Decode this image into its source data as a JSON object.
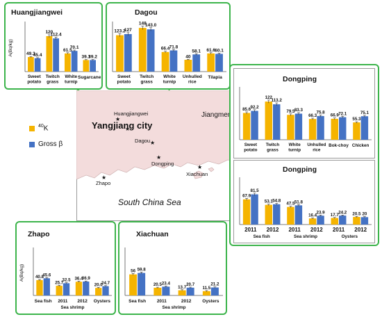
{
  "colors": {
    "k40": "#f5b400",
    "grossb": "#4472c4",
    "panel_border": "#3cb44b",
    "sea": "#ffffff",
    "land": "#f3dcdc"
  },
  "legend": {
    "k40": "40K",
    "k40_mass": "40",
    "k40_sym": "K",
    "grossb": "Gross β"
  },
  "map": {
    "labels": {
      "huangjiangwei": "Huangjiangwei",
      "yangjiang": "Yangjiang city",
      "jiangmen": "Jiangmen city",
      "dagou": "Dagou",
      "dongping": "Dongping",
      "xiachuan": "Xiachuan",
      "zhapo": "Zhapo",
      "south_china_sea": "South    China    Sea"
    }
  },
  "chart_data": [
    {
      "id": "huangjiangwei",
      "type": "bar",
      "title": "Huangjiangwei",
      "ylabel": "A(Bq/kg)",
      "categories": [
        "Sweet potato",
        "Twitch grass",
        "White turnip",
        "Sugarcane"
      ],
      "ylim": [
        0,
        160
      ],
      "series": [
        {
          "name": "40K",
          "values": [
            49.3,
            120,
            61.5,
            39.1
          ],
          "labels": [
            "49.3",
            "120",
            "61.5",
            "39.1"
          ]
        },
        {
          "name": "Gross β",
          "values": [
            45.4,
            112.4,
            70.1,
            39.2
          ],
          "labels": [
            "45.4",
            "112.4",
            "70.1",
            "39.2"
          ]
        }
      ]
    },
    {
      "id": "dagou",
      "type": "bar",
      "title": "Dagou",
      "ylabel": "",
      "categories": [
        "Sweet potato",
        "Twitch grass",
        "White turnip",
        "Unhulled rice",
        "Tilapia"
      ],
      "ylim": [
        0,
        160
      ],
      "series": [
        {
          "name": "40K",
          "values": [
            123.2,
            148,
            66.4,
            40,
            61.6
          ],
          "labels": [
            "123.2",
            "148",
            "66.4",
            "40",
            "61.6"
          ]
        },
        {
          "name": "Gross β",
          "values": [
            127,
            143.0,
            71.8,
            58.1,
            60.1
          ],
          "labels": [
            "127",
            "143.0",
            "71.8",
            "58.1",
            "60.1"
          ]
        }
      ]
    },
    {
      "id": "dongping-food",
      "type": "bar",
      "title": "Dongping",
      "ylabel": "",
      "categories": [
        "Sweet potato",
        "Twitch grass",
        "White turnip",
        "Unhulled rice",
        "Bok-choy",
        "Chicken"
      ],
      "ylim": [
        0,
        160
      ],
      "series": [
        {
          "name": "40K",
          "values": [
            85.6,
            122,
            79.5,
            66.3,
            66.9,
            55.3
          ],
          "labels": [
            "85.6",
            "122",
            "79.5",
            "66.3",
            "66.9",
            "55.3"
          ]
        },
        {
          "name": "Gross β",
          "values": [
            92.2,
            113.2,
            83.3,
            75.8,
            72.1,
            75.1
          ],
          "labels": [
            "92.2",
            "113.2",
            "83.3",
            "75.8",
            "72.1",
            "75.1"
          ]
        }
      ]
    },
    {
      "id": "dongping-sea",
      "type": "bar",
      "title": "Dongping",
      "ylabel": "",
      "categories": [
        "2011",
        "2012",
        "2011",
        "2012",
        "2011",
        "2012"
      ],
      "groups": [
        {
          "name": "Sea fish",
          "span": [
            0,
            1
          ]
        },
        {
          "name": "Sea shrimp",
          "span": [
            2,
            3
          ]
        },
        {
          "name": "Oysters",
          "span": [
            4,
            5
          ]
        }
      ],
      "ylim": [
        0,
        120
      ],
      "series": [
        {
          "name": "40K",
          "values": [
            67.9,
            53.1,
            47.5,
            16.4,
            17.7,
            20.5
          ],
          "labels": [
            "67.9",
            "53.1",
            "47.5",
            "16.4",
            "17.7",
            "20.5"
          ]
        },
        {
          "name": "Gross β",
          "values": [
            81.5,
            54.8,
            51.8,
            23.9,
            24.2,
            20
          ],
          "labels": [
            "81.5",
            "54.8",
            "51.8",
            "23.9",
            "24.2",
            "20"
          ]
        }
      ]
    },
    {
      "id": "zhapo",
      "type": "bar",
      "title": "Zhapo",
      "ylabel": "A(Bq/kg)",
      "categories": [
        "Sea fish",
        "2011",
        "2012",
        "Oysters"
      ],
      "groups": [
        {
          "name": "Sea shrimp",
          "span": [
            1,
            2
          ]
        }
      ],
      "ylim": [
        0,
        120
      ],
      "series": [
        {
          "name": "40K",
          "values": [
            40.8,
            25.7,
            36.4,
            20.0
          ],
          "labels": [
            "40.8",
            "25.7",
            "36.4",
            "20.0"
          ]
        },
        {
          "name": "Gross β",
          "values": [
            45.6,
            32.5,
            36.9,
            24.7
          ],
          "labels": [
            "45.6",
            "32.5",
            "36.9",
            "24.7"
          ]
        }
      ]
    },
    {
      "id": "xiachuan",
      "type": "bar",
      "title": "Xiachuan",
      "ylabel": "",
      "categories": [
        "Sea fish",
        "2011",
        "2012",
        "Oysters"
      ],
      "groups": [
        {
          "name": "Sea shrimp",
          "span": [
            1,
            2
          ]
        }
      ],
      "ylim": [
        0,
        120
      ],
      "series": [
        {
          "name": "40K",
          "values": [
            56,
            20.5,
            13.7,
            11.5
          ],
          "labels": [
            "56",
            "20.5",
            "13.7",
            "11.5"
          ]
        },
        {
          "name": "Gross β",
          "values": [
            59.8,
            23.4,
            20.7,
            21.2
          ],
          "labels": [
            "59.8",
            "23.4",
            "20.7",
            "21.2"
          ]
        }
      ]
    }
  ]
}
